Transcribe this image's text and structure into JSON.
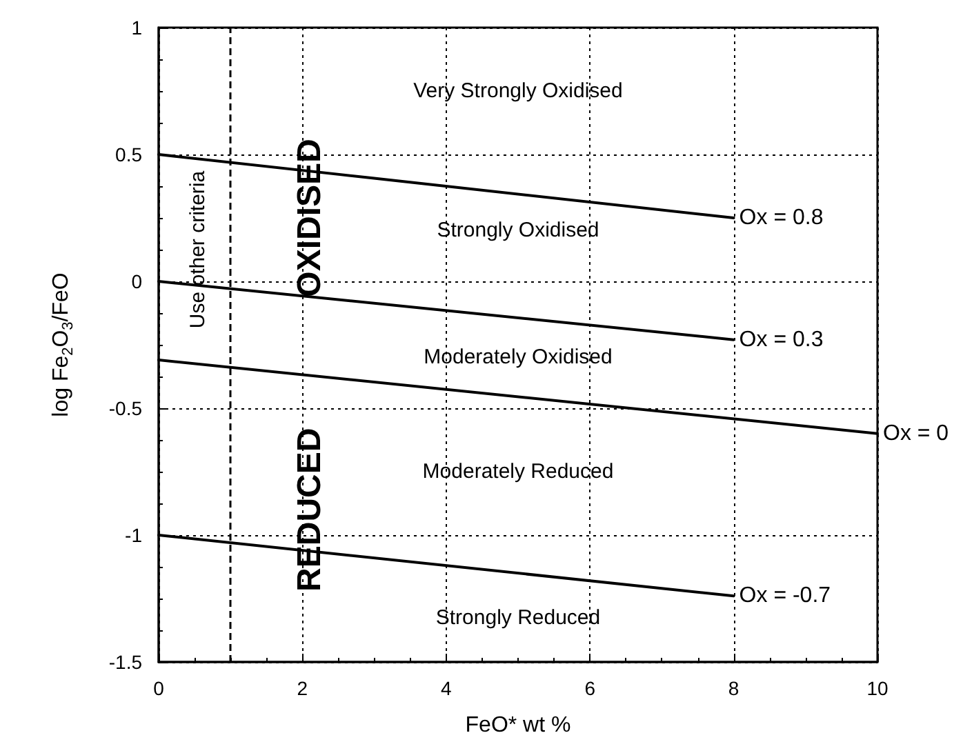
{
  "chart_data": {
    "type": "line",
    "xlabel": "FeO* wt %",
    "ylabel": "log Fe$_{2}$O$_{3}$/FeO",
    "xlim": [
      0,
      10
    ],
    "xticks": [
      0,
      2,
      4,
      6,
      8,
      10
    ],
    "ylim": [
      -1.5,
      1
    ],
    "yticks": [
      -1.5,
      -1,
      -0.5,
      0,
      0.5,
      1
    ],
    "grid": true,
    "legend": false,
    "marker": "none",
    "line_style": "solid",
    "series": [
      {
        "name": "Ox = 0.8",
        "color": "#000000",
        "x": [
          0,
          8
        ],
        "values": [
          0.5,
          0.25
        ]
      },
      {
        "name": "Ox = 0.3",
        "color": "#000000",
        "x": [
          0,
          8
        ],
        "values": [
          0,
          -0.23
        ]
      },
      {
        "name": "Ox = 0",
        "color": "#000000",
        "x": [
          0,
          10
        ],
        "values": [
          -0.31,
          -0.6
        ]
      },
      {
        "name": "Ox = -0.7",
        "color": "#000000",
        "x": [
          0,
          8
        ],
        "values": [
          -1,
          -1.24
        ]
      }
    ],
    "ref_lines": [
      {
        "axis": "x",
        "value": 1,
        "label": null,
        "color": "#000000",
        "line_style": "dashed"
      }
    ],
    "annotations": [
      "Very Strongly Oxidised",
      "Strongly Oxidised",
      "Moderately Oxidised",
      "Moderately Reduced",
      "Strongly Reduced",
      "OXIDISED",
      "REDUCED",
      "Use other criteria"
    ]
  }
}
